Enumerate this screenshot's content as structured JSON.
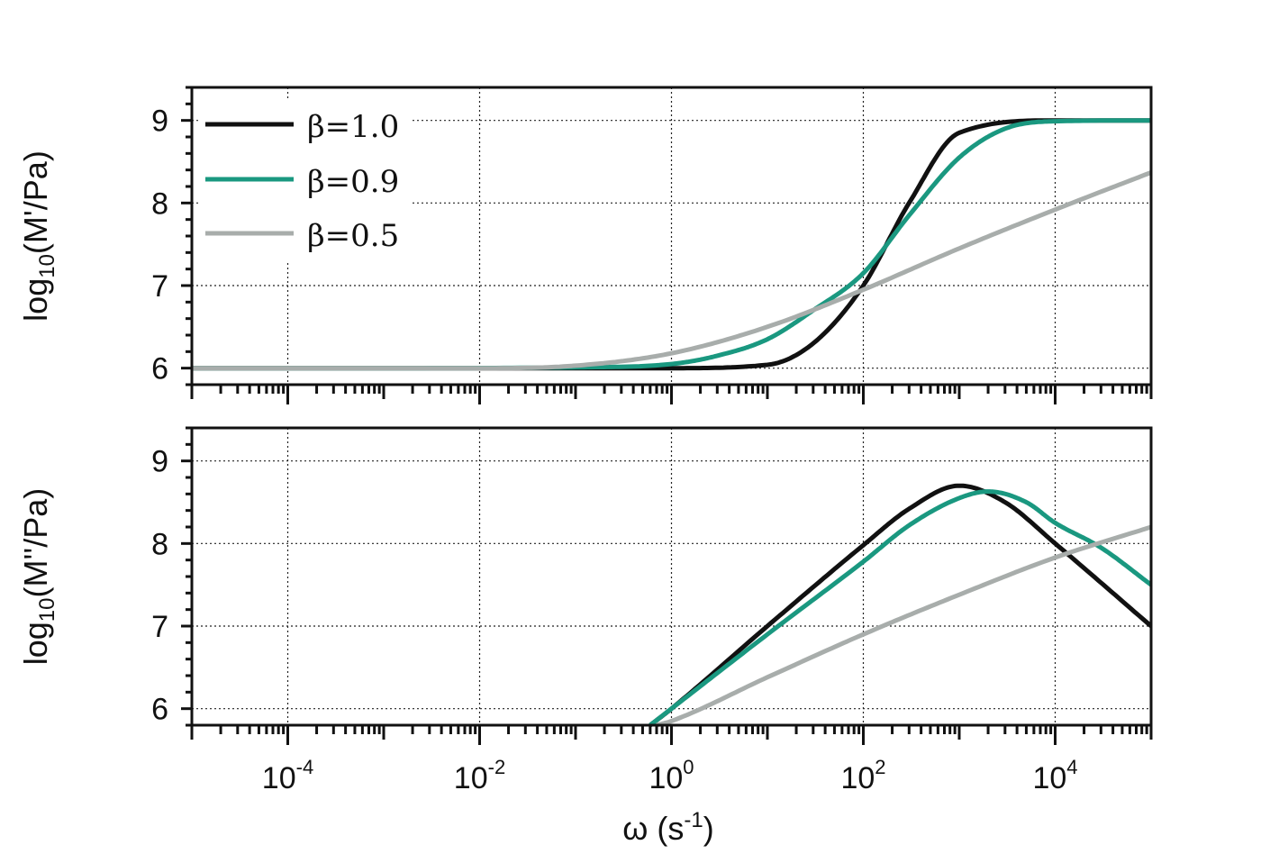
{
  "colors": {
    "beta_1_0": "#111111",
    "beta_0_9": "#1a9880",
    "beta_0_5": "#a8adab"
  },
  "legend": {
    "items": [
      {
        "label": "β=1.0",
        "color": "#111111"
      },
      {
        "label": "β=0.9",
        "color": "#1a9880"
      },
      {
        "label": "β=0.5",
        "color": "#a8adab"
      }
    ]
  },
  "shared_x_axis": {
    "title_main": "ω (s",
    "title_sup": "-1",
    "title_end": ")",
    "tick_labels": [
      {
        "base": "10",
        "exp": "-4",
        "log": -4
      },
      {
        "base": "10",
        "exp": "-2",
        "log": -2
      },
      {
        "base": "10",
        "exp": "0",
        "log": 0
      },
      {
        "base": "10",
        "exp": "2",
        "log": 2
      },
      {
        "base": "10",
        "exp": "4",
        "log": 4
      }
    ]
  },
  "chart_data": [
    {
      "type": "line",
      "panel": "top",
      "ylabel_pre": "log",
      "ylabel_sub": "10",
      "ylabel_post": "(M'/Pa)",
      "xscale": "log",
      "xlim": [
        1e-05,
        100000
      ],
      "ylim": [
        5.8,
        9.4
      ],
      "yticks": [
        6,
        7,
        8,
        9
      ],
      "grid": true,
      "legend_position": "top-left",
      "series": [
        {
          "name": "β=1.0",
          "color": "#111111",
          "x": [
            1e-05,
            0.001,
            0.1,
            1,
            10,
            30,
            100,
            300,
            1000,
            10000,
            100000
          ],
          "y": [
            6.0,
            6.0,
            6.0,
            6.0,
            6.04,
            6.3,
            7.0,
            8.0,
            8.85,
            9.0,
            9.0
          ]
        },
        {
          "name": "β=0.9",
          "color": "#1a9880",
          "x": [
            1e-05,
            0.001,
            0.1,
            1,
            3,
            10,
            30,
            100,
            300,
            1000,
            3000,
            10000,
            100000
          ],
          "y": [
            6.0,
            6.0,
            6.01,
            6.05,
            6.15,
            6.35,
            6.7,
            7.15,
            7.85,
            8.55,
            8.9,
            8.99,
            9.0
          ]
        },
        {
          "name": "β=0.5",
          "color": "#a8adab",
          "x": [
            1e-05,
            0.001,
            0.01,
            0.1,
            1,
            10,
            100,
            1000,
            10000,
            100000
          ],
          "y": [
            6.0,
            6.0,
            6.0,
            6.03,
            6.18,
            6.5,
            6.95,
            7.45,
            7.92,
            8.37
          ]
        }
      ]
    },
    {
      "type": "line",
      "panel": "bottom",
      "ylabel_pre": "log",
      "ylabel_sub": "10",
      "ylabel_post": "(M''/Pa)",
      "xscale": "log",
      "xlabel": "ω (s-1)",
      "xlim": [
        1e-05,
        100000
      ],
      "ylim": [
        5.8,
        9.4
      ],
      "yticks": [
        6,
        7,
        8,
        9
      ],
      "grid": true,
      "series": [
        {
          "name": "β=1.0",
          "color": "#111111",
          "x": [
            0.6,
            1,
            10,
            100,
            300,
            1000,
            3000,
            10000,
            100000
          ],
          "y": [
            5.8,
            6.0,
            7.0,
            7.98,
            8.42,
            8.7,
            8.5,
            8.0,
            7.0
          ]
        },
        {
          "name": "β=0.9",
          "color": "#1a9880",
          "x": [
            0.6,
            1,
            10,
            100,
            300,
            1000,
            2000,
            5000,
            10000,
            30000,
            100000
          ],
          "y": [
            5.8,
            6.0,
            6.9,
            7.78,
            8.22,
            8.55,
            8.63,
            8.5,
            8.25,
            7.95,
            7.5
          ]
        },
        {
          "name": "β=0.5",
          "color": "#a8adab",
          "x": [
            0.7,
            1,
            10,
            100,
            1000,
            10000,
            100000
          ],
          "y": [
            5.8,
            5.85,
            6.38,
            6.9,
            7.38,
            7.83,
            8.2
          ]
        }
      ]
    }
  ]
}
